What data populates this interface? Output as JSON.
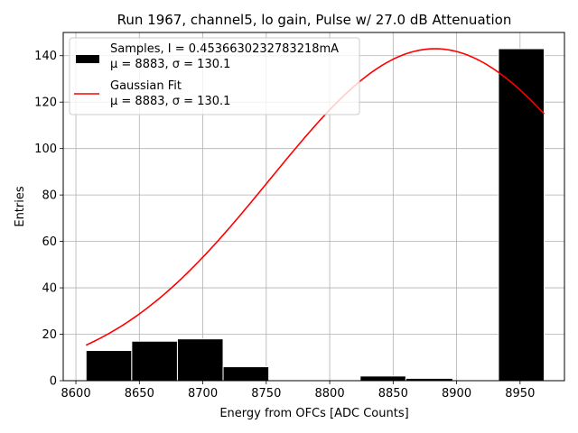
{
  "chart_data": {
    "type": "bar",
    "title": "Run 1967, channel5, lo gain, Pulse w/ 27.0 dB Attenuation",
    "xlabel": "Energy from OFCs [ADC Counts]",
    "ylabel": "Entries",
    "xlim": [
      8590,
      8985
    ],
    "ylim": [
      0,
      150
    ],
    "xticks": [
      8600,
      8650,
      8700,
      8750,
      8800,
      8850,
      8900,
      8950
    ],
    "yticks": [
      0,
      20,
      40,
      60,
      80,
      100,
      120,
      140
    ],
    "grid": true,
    "legend_placement": "top-left",
    "histogram": {
      "name": "Samples, I = 0.4536630232783218mA",
      "name_line2": "μ = 8883, σ = 130.1",
      "color": "#000000",
      "bins": [
        {
          "x0": 8608,
          "x1": 8644,
          "count": 13
        },
        {
          "x0": 8644,
          "x1": 8680,
          "count": 17
        },
        {
          "x0": 8680,
          "x1": 8716,
          "count": 18
        },
        {
          "x0": 8716,
          "x1": 8752,
          "count": 6
        },
        {
          "x0": 8752,
          "x1": 8788,
          "count": 0
        },
        {
          "x0": 8788,
          "x1": 8824,
          "count": 0
        },
        {
          "x0": 8824,
          "x1": 8860,
          "count": 2
        },
        {
          "x0": 8860,
          "x1": 8897,
          "count": 1
        },
        {
          "x0": 8897,
          "x1": 8933,
          "count": 0
        },
        {
          "x0": 8933,
          "x1": 8969,
          "count": 143
        }
      ]
    },
    "fit": {
      "name": "Gaussian Fit",
      "name_line2": "μ = 8883, σ = 130.1",
      "color": "#ff0000",
      "amplitude": 143,
      "mu": 8883,
      "sigma": 130.1,
      "x_start": 8608,
      "x_end": 8969
    }
  }
}
